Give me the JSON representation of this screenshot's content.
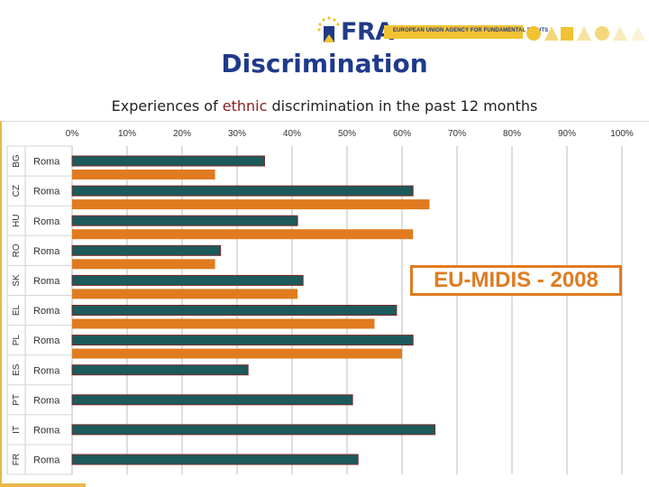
{
  "logo": {
    "name": "FRA",
    "tagline": "EUROPEAN UNION AGENCY FOR FUNDAMENTAL RIGHTS"
  },
  "title": "Discrimination",
  "subtitle": {
    "before": "Experiences of ",
    "highlight": "ethnic",
    "after": " discrimination in the past 12 months"
  },
  "stamp": "EU-MIDIS - 2008",
  "colors": {
    "teal": "#1c5a5b",
    "orange": "#e07b20",
    "title": "#1f3a8a",
    "highlight": "#8b1c1c"
  },
  "chart_data": {
    "type": "bar",
    "orientation": "horizontal",
    "xlim": [
      0,
      100
    ],
    "x_ticks": [
      "0%",
      "10%",
      "20%",
      "30%",
      "40%",
      "50%",
      "60%",
      "70%",
      "80%",
      "90%",
      "100%"
    ],
    "grid": true,
    "categories": [
      {
        "country": "BG",
        "group": "Roma"
      },
      {
        "country": "CZ",
        "group": "Roma"
      },
      {
        "country": "HU",
        "group": "Roma"
      },
      {
        "country": "RO",
        "group": "Roma"
      },
      {
        "country": "SK",
        "group": "Roma"
      },
      {
        "country": "EL",
        "group": "Roma"
      },
      {
        "country": "PL",
        "group": "Roma"
      },
      {
        "country": "ES",
        "group": "Roma"
      },
      {
        "country": "PT",
        "group": "Roma"
      },
      {
        "country": "IT",
        "group": "Roma"
      },
      {
        "country": "FR",
        "group": "Roma"
      }
    ],
    "series": [
      {
        "color": "#1c5a5b",
        "values": [
          35,
          62,
          41,
          27,
          42,
          59,
          62,
          32,
          51,
          66,
          52
        ]
      },
      {
        "color": "#e07b20",
        "values": [
          26,
          65,
          62,
          26,
          41,
          55,
          60,
          null,
          null,
          null,
          null
        ]
      }
    ]
  }
}
